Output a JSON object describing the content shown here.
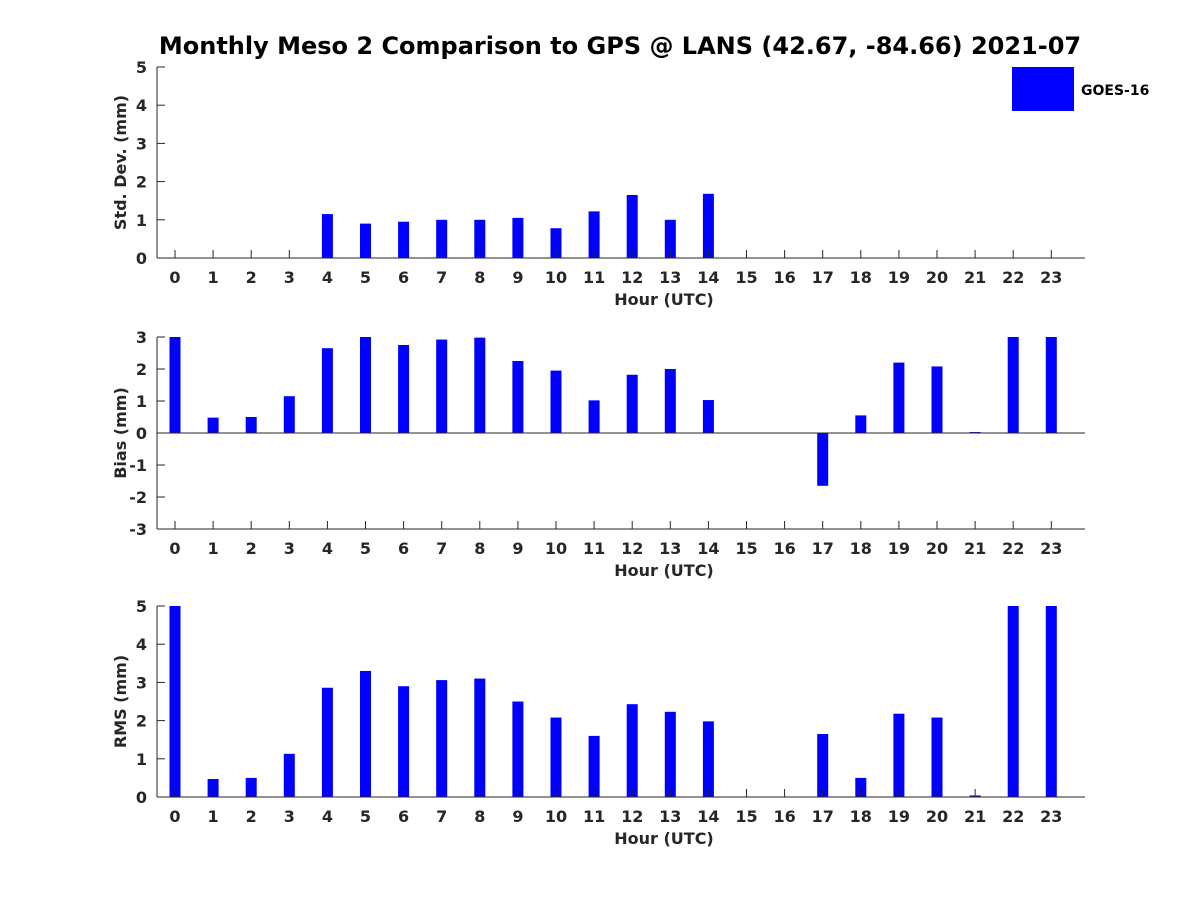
{
  "figure": {
    "title": "Monthly Meso 2 Comparison to GPS @ LANS (42.67, -84.66) 2021-07",
    "bar_color": "#0000ff"
  },
  "legend": {
    "label": "GOES-16",
    "color": "#0000ff",
    "placement": "top-right"
  },
  "chart_data": [
    {
      "type": "bar",
      "name": "std-dev",
      "ylabel": "Std. Dev. (mm)",
      "xlabel": "Hour (UTC)",
      "ylim": [
        0,
        5
      ],
      "yticks": [
        "0",
        "1",
        "2",
        "3",
        "4",
        "5"
      ],
      "categories": [
        "0",
        "1",
        "2",
        "3",
        "4",
        "5",
        "6",
        "7",
        "8",
        "9",
        "10",
        "11",
        "12",
        "13",
        "14",
        "15",
        "16",
        "17",
        "18",
        "19",
        "20",
        "21",
        "22",
        "23"
      ],
      "series": [
        {
          "name": "GOES-16",
          "values": [
            0,
            0,
            0,
            0,
            1.15,
            0.9,
            0.95,
            1.0,
            1.0,
            1.05,
            0.78,
            1.22,
            1.65,
            1.0,
            1.68,
            0,
            0,
            0,
            0,
            0,
            0,
            0,
            0,
            0
          ]
        }
      ]
    },
    {
      "type": "bar",
      "name": "bias",
      "ylabel": "Bias (mm)",
      "xlabel": "Hour (UTC)",
      "ylim": [
        -3,
        3
      ],
      "yticks": [
        "-3",
        "-2",
        "-1",
        "0",
        "1",
        "2",
        "3"
      ],
      "categories": [
        "0",
        "1",
        "2",
        "3",
        "4",
        "5",
        "6",
        "7",
        "8",
        "9",
        "10",
        "11",
        "12",
        "13",
        "14",
        "15",
        "16",
        "17",
        "18",
        "19",
        "20",
        "21",
        "22",
        "23"
      ],
      "series": [
        {
          "name": "GOES-16",
          "values": [
            3.0,
            0.48,
            0.5,
            1.15,
            2.65,
            3.0,
            2.75,
            2.92,
            2.98,
            2.25,
            1.95,
            1.02,
            1.82,
            2.0,
            1.03,
            0,
            0,
            -1.65,
            0.55,
            2.2,
            2.08,
            0.03,
            3.0,
            3.0
          ]
        }
      ]
    },
    {
      "type": "bar",
      "name": "rms",
      "ylabel": "RMS (mm)",
      "xlabel": "Hour (UTC)",
      "ylim": [
        0,
        5
      ],
      "yticks": [
        "0",
        "1",
        "2",
        "3",
        "4",
        "5"
      ],
      "categories": [
        "0",
        "1",
        "2",
        "3",
        "4",
        "5",
        "6",
        "7",
        "8",
        "9",
        "10",
        "11",
        "12",
        "13",
        "14",
        "15",
        "16",
        "17",
        "18",
        "19",
        "20",
        "21",
        "22",
        "23"
      ],
      "series": [
        {
          "name": "GOES-16",
          "values": [
            5.0,
            0.47,
            0.5,
            1.13,
            2.86,
            3.3,
            2.9,
            3.06,
            3.1,
            2.5,
            2.08,
            1.6,
            2.43,
            2.23,
            1.98,
            0,
            0,
            1.65,
            0.5,
            2.18,
            2.08,
            0.04,
            5.0,
            5.0
          ]
        }
      ]
    }
  ]
}
